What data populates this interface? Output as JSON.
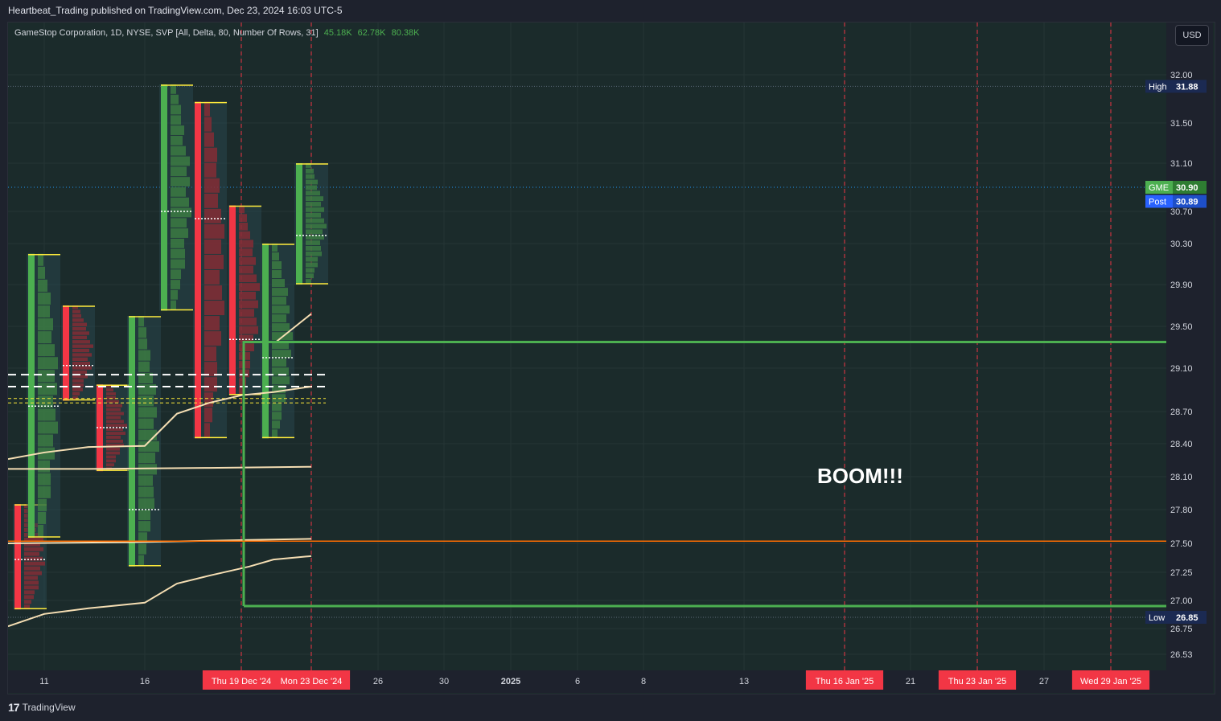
{
  "published": "Heartbeat_Trading published on TradingView.com, Dec 23, 2024 16:03 UTC-5",
  "legend": {
    "symbol": "GameStop Corporation, 1D, NYSE, SVP [All, Delta, 80, Number Of Rows, 31]",
    "v1": "45.18K",
    "v2": "62.78K",
    "v3": "80.38K"
  },
  "currency_button": "USD",
  "annotation": "BOOM!!!",
  "brand": "TradingView",
  "colors": {
    "up": "#4caf50",
    "down": "#f23645",
    "box": "#4caf50",
    "hline": "#ff6d00",
    "ma": "#f5deb3"
  },
  "chart_data": {
    "type": "candlestick_with_volume_profile",
    "y_ticks": [
      "32.00",
      "31.50",
      "31.10",
      "30.70",
      "30.30",
      "29.90",
      "29.50",
      "29.10",
      "28.70",
      "28.40",
      "28.10",
      "27.80",
      "27.50",
      "27.25",
      "27.00",
      "26.75",
      "26.53"
    ],
    "x_ticks": [
      {
        "label": "11",
        "highlight": false
      },
      {
        "label": "16",
        "highlight": false
      },
      {
        "label": "Thu 19 Dec '24",
        "highlight": true
      },
      {
        "label": "Mon 23 Dec '24",
        "highlight": true
      },
      {
        "label": "26",
        "highlight": false
      },
      {
        "label": "30",
        "highlight": false
      },
      {
        "label": "2025",
        "highlight": false
      },
      {
        "label": "6",
        "highlight": false
      },
      {
        "label": "8",
        "highlight": false
      },
      {
        "label": "13",
        "highlight": false
      },
      {
        "label": "Thu 16 Jan '25",
        "highlight": true
      },
      {
        "label": "21",
        "highlight": false
      },
      {
        "label": "Thu 23 Jan '25",
        "highlight": true
      },
      {
        "label": "27",
        "highlight": false
      },
      {
        "label": "Wed 29 Jan '25",
        "highlight": true
      }
    ],
    "price_labels": [
      {
        "name": "High",
        "value": "31.88",
        "price": 31.88
      },
      {
        "name": "GME",
        "value": "30.90",
        "price": 30.9
      },
      {
        "name": "Post",
        "value": "30.89",
        "price": 30.89
      },
      {
        "name": "Low",
        "value": "26.85",
        "price": 26.85
      }
    ],
    "candles": [
      {
        "o": 27.8,
        "h": 27.85,
        "l": 26.92,
        "c": 26.92
      },
      {
        "o": 27.55,
        "h": 30.2,
        "l": 27.55,
        "c": 29.95
      },
      {
        "o": 29.45,
        "h": 29.7,
        "l": 28.8,
        "c": 28.8
      },
      {
        "o": 28.95,
        "h": 28.95,
        "l": 28.15,
        "c": 28.15
      },
      {
        "o": 27.5,
        "h": 29.6,
        "l": 27.3,
        "c": 28.1
      },
      {
        "o": 29.95,
        "h": 31.9,
        "l": 29.65,
        "c": 31.45
      },
      {
        "o": 31.72,
        "h": 31.72,
        "l": 28.45,
        "c": 29.5
      },
      {
        "o": 29.9,
        "h": 30.75,
        "l": 28.85,
        "c": 28.85
      },
      {
        "o": 28.45,
        "h": 30.3,
        "l": 28.45,
        "c": 29.95
      },
      {
        "o": 29.9,
        "h": 31.1,
        "l": 29.9,
        "c": 30.9
      }
    ],
    "horizontal_line": 27.52,
    "box": {
      "top": 29.35,
      "bottom": 26.95
    },
    "grid": true
  }
}
